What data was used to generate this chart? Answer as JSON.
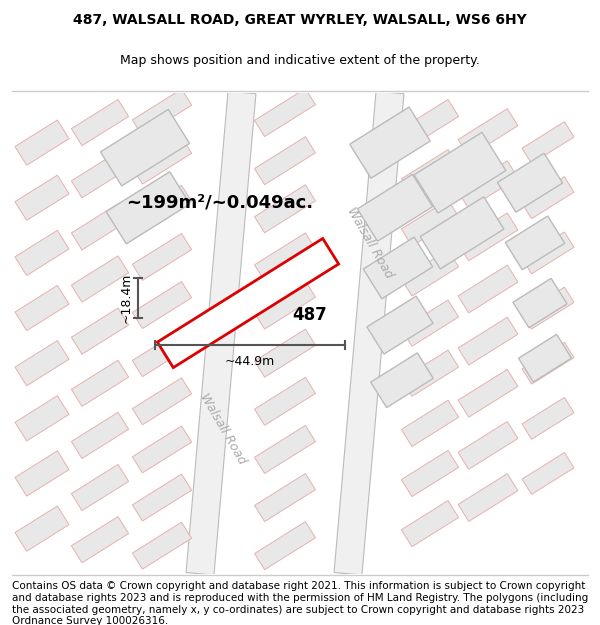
{
  "title_line1": "487, WALSALL ROAD, GREAT WYRLEY, WALSALL, WS6 6HY",
  "title_line2": "Map shows position and indicative extent of the property.",
  "footer_text": "Contains OS data © Crown copyright and database right 2021. This information is subject to Crown copyright and database rights 2023 and is reproduced with the permission of HM Land Registry. The polygons (including the associated geometry, namely x, y co-ordinates) are subject to Crown copyright and database rights 2023 Ordnance Survey 100026316.",
  "area_label": "~199m²/~0.049ac.",
  "width_label": "~44.9m",
  "height_label": "~18.4m",
  "property_number": "487",
  "bg_color": "#ffffff",
  "map_bg": "#ffffff",
  "building_fill": "#e8e8e8",
  "building_stroke": "#e8b0b0",
  "building_stroke_lw": 0.7,
  "road_fill": "#e8e8e8",
  "road_edge": "#aaaaaa",
  "highlight_stroke": "#dd0000",
  "road_label_color": "#aaaaaa",
  "dim_color": "#555555",
  "title_fontsize": 10,
  "footer_fontsize": 7.5
}
